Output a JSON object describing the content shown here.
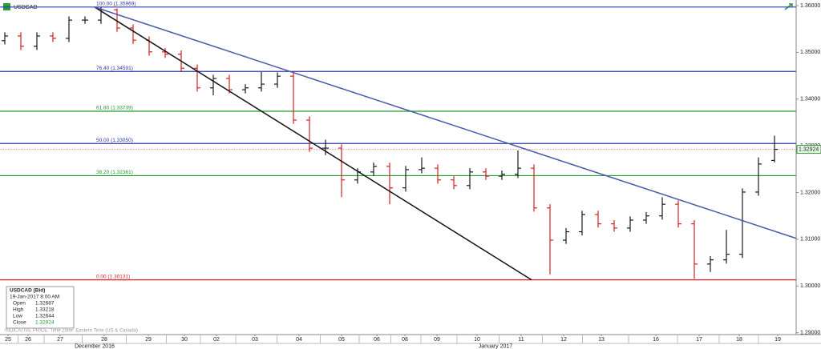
{
  "chart_data": {
    "type": "ohlc",
    "symbol": "USDCAD",
    "x": [
      0,
      1,
      2,
      3,
      4,
      5,
      6,
      7,
      8,
      9,
      10,
      11,
      12,
      13,
      14,
      15,
      16,
      17,
      18,
      19,
      20,
      21,
      22,
      23,
      24,
      25,
      26,
      27,
      28,
      29,
      30,
      31,
      32,
      33,
      34,
      35,
      36,
      37,
      38,
      39,
      40,
      41,
      42,
      43,
      44,
      45,
      46,
      47,
      48
    ],
    "open": [
      1.3525,
      1.3535,
      1.3513,
      1.3535,
      1.353,
      1.3569,
      1.3569,
      1.3591,
      1.3552,
      1.3526,
      1.3501,
      1.3496,
      1.3466,
      1.3424,
      1.3444,
      1.342,
      1.3424,
      1.3432,
      1.3449,
      1.3355,
      1.3295,
      1.3295,
      1.3227,
      1.3244,
      1.3256,
      1.321,
      1.3249,
      1.3252,
      1.3227,
      1.3215,
      1.3244,
      1.3235,
      1.3239,
      1.3252,
      1.3167,
      1.3098,
      1.3116,
      1.3153,
      1.3133,
      1.3124,
      1.3141,
      1.315,
      1.3175,
      1.3133,
      1.3047,
      1.3056,
      1.3068,
      1.3201,
      1.32687
    ],
    "high": [
      1.3543,
      1.3543,
      1.3543,
      1.3543,
      1.3577,
      1.3577,
      1.35969,
      1.3594,
      1.356,
      1.3534,
      1.3509,
      1.3504,
      1.3474,
      1.3452,
      1.3452,
      1.3432,
      1.3458,
      1.3457,
      1.3457,
      1.3363,
      1.3313,
      1.3303,
      1.3252,
      1.3264,
      1.3264,
      1.3257,
      1.3275,
      1.326,
      1.3235,
      1.3252,
      1.3252,
      1.3247,
      1.329,
      1.326,
      1.3175,
      1.3124,
      1.3161,
      1.3161,
      1.3141,
      1.3149,
      1.3158,
      1.319,
      1.3183,
      1.3141,
      1.3064,
      1.312,
      1.3209,
      1.3275,
      1.33218
    ],
    "low": [
      1.3517,
      1.3505,
      1.3505,
      1.3522,
      1.3522,
      1.3561,
      1.3561,
      1.3544,
      1.3518,
      1.3493,
      1.3488,
      1.3458,
      1.3416,
      1.3408,
      1.3412,
      1.3412,
      1.3416,
      1.3424,
      1.3347,
      1.3287,
      1.328,
      1.319,
      1.3219,
      1.3236,
      1.3175,
      1.3202,
      1.3241,
      1.3219,
      1.3207,
      1.3207,
      1.3227,
      1.3227,
      1.3231,
      1.3159,
      1.3025,
      1.309,
      1.3108,
      1.3125,
      1.3116,
      1.3116,
      1.3133,
      1.3142,
      1.3125,
      1.3015,
      1.303,
      1.3048,
      1.306,
      1.3193,
      1.32644
    ],
    "close": [
      1.3535,
      1.3513,
      1.3535,
      1.353,
      1.3569,
      1.3569,
      1.3591,
      1.3552,
      1.3526,
      1.3501,
      1.3496,
      1.3466,
      1.3424,
      1.3444,
      1.342,
      1.3424,
      1.3432,
      1.3449,
      1.3355,
      1.3295,
      1.3295,
      1.3227,
      1.3244,
      1.3256,
      1.321,
      1.3249,
      1.3252,
      1.3227,
      1.3215,
      1.3244,
      1.3235,
      1.3239,
      1.3252,
      1.3167,
      1.3098,
      1.3116,
      1.3153,
      1.3133,
      1.3124,
      1.3141,
      1.315,
      1.3175,
      1.3133,
      1.3047,
      1.3056,
      1.3068,
      1.3201,
      1.3261,
      1.32924
    ],
    "up_color": "#1a1a1a",
    "down_color": "#d42020",
    "xlim": [
      -0.3,
      49.35
    ],
    "ylim": [
      1.2896,
      1.3612
    ],
    "yticks": [
      {
        "value": 1.36,
        "label": "1.36000"
      },
      {
        "value": 1.35,
        "label": "1.35000"
      },
      {
        "value": 1.34,
        "label": "1.34000"
      },
      {
        "value": 1.33,
        "label": "1.33000"
      },
      {
        "value": 1.32,
        "label": "1.32000"
      },
      {
        "value": 1.31,
        "label": "1.31000"
      },
      {
        "value": 1.3,
        "label": "1.30000"
      },
      {
        "value": 1.29,
        "label": "1.29000"
      }
    ],
    "xticks": [
      {
        "value": 0.2,
        "label": "25"
      },
      {
        "value": 1.45,
        "label": "26"
      },
      {
        "value": 3.45,
        "label": "27"
      },
      {
        "value": 6.2,
        "label": "28"
      },
      {
        "value": 8.95,
        "label": "29"
      },
      {
        "value": 11.2,
        "label": "30"
      },
      {
        "value": 13.2,
        "label": "02"
      },
      {
        "value": 15.6,
        "label": "03"
      },
      {
        "value": 18.35,
        "label": "04"
      },
      {
        "value": 21,
        "label": "05"
      },
      {
        "value": 23.2,
        "label": "06"
      },
      {
        "value": 24.95,
        "label": "08"
      },
      {
        "value": 26.95,
        "label": "09"
      },
      {
        "value": 29.45,
        "label": "10"
      },
      {
        "value": 32.2,
        "label": "11"
      },
      {
        "value": 34.85,
        "label": "12"
      },
      {
        "value": 37.2,
        "label": "13"
      },
      {
        "value": 40.6,
        "label": "16"
      },
      {
        "value": 43.3,
        "label": "17"
      },
      {
        "value": 45.8,
        "label": "18"
      },
      {
        "value": 48.2,
        "label": "19"
      }
    ],
    "month_ticks": [
      {
        "value": 5.6,
        "label": "December 2016"
      },
      {
        "value": 30.6,
        "label": "January 2017"
      }
    ],
    "fib_levels": [
      {
        "value": 1.35969,
        "label": "100.00 (1.35969)",
        "color": "#2b3aa8"
      },
      {
        "value": 1.34591,
        "label": "76.40 (1.34591)",
        "color": "#2b3aa8"
      },
      {
        "value": 1.33739,
        "label": "61.80 (1.33739)",
        "color": "#1e9a2e"
      },
      {
        "value": 1.3305,
        "label": "50.00 (1.33050)",
        "color": "#2b3aa8"
      },
      {
        "value": 1.32361,
        "label": "38.20 (1.32361)",
        "color": "#1e9a2e"
      },
      {
        "value": 1.30131,
        "label": "0.00 (1.30131)",
        "color": "#e02020"
      }
    ],
    "trendlines": [
      {
        "x": [
          5.6,
          32.85
        ],
        "values": [
          1.35969,
          1.30131
        ],
        "color": "#111111"
      },
      {
        "x": [
          5.6,
          49.35
        ],
        "values": [
          1.35969,
          1.3102
        ],
        "color": "#4a5aa8"
      }
    ],
    "last_price": {
      "value": 1.32924,
      "label": "1.32924"
    },
    "info_box": {
      "title": "USDCAD (Bid)",
      "datetime": "19-Jan-2017 8:00 AM",
      "rows": [
        {
          "label": "Open",
          "value": 1.32687
        },
        {
          "label": "High",
          "value": 1.33218
        },
        {
          "label": "Low",
          "value": 1.32644
        },
        {
          "label": "Close",
          "value": 1.32924
        }
      ]
    },
    "footnote": "INDICATIVE PRICE. Time Zone: Eastern Time (US & Canada)"
  }
}
